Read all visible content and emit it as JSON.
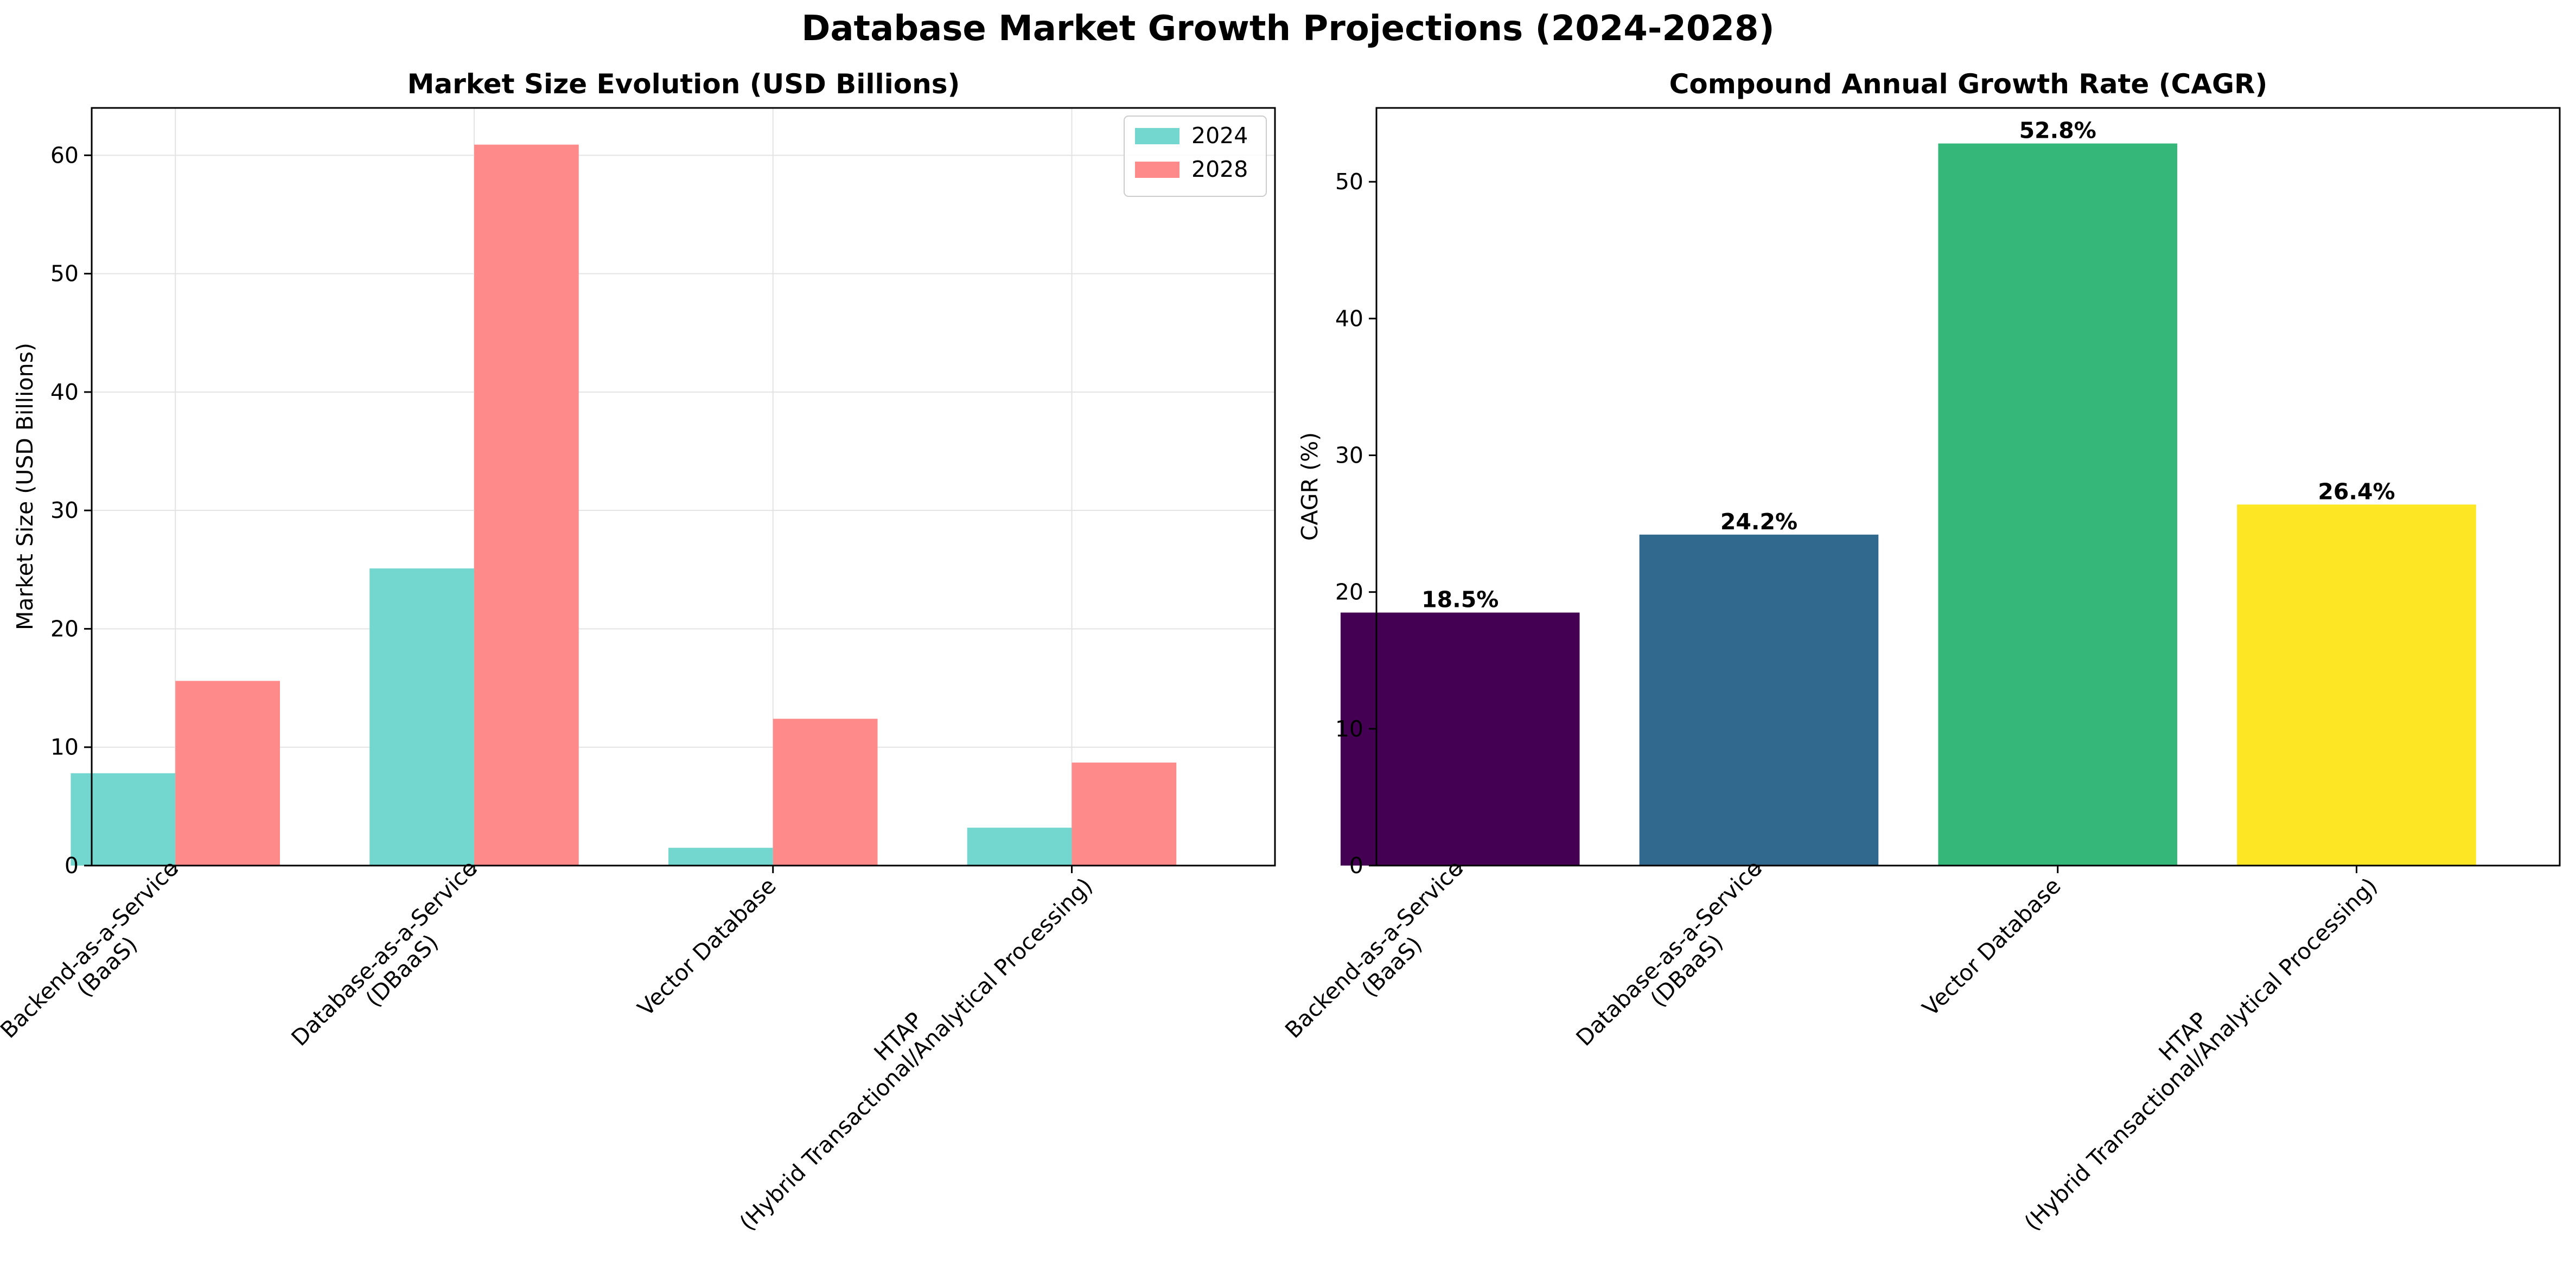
{
  "title": "Database Market Growth Projections (2024-2028)",
  "chart_data": [
    {
      "type": "bar",
      "title": "Market Size Evolution (USD Billions)",
      "xlabel": "",
      "ylabel": "Market Size (USD Billions)",
      "categories": [
        [
          "Backend-as-a-Service",
          "(BaaS)"
        ],
        [
          "Database-as-a-Service",
          "(DBaaS)"
        ],
        [
          "Vector Database"
        ],
        [
          "HTAP",
          "(Hybrid Transactional/Analytical Processing)"
        ]
      ],
      "series": [
        {
          "name": "2024",
          "color": "#73d7d0",
          "values": [
            7.8,
            25.1,
            1.5,
            3.2
          ]
        },
        {
          "name": "2028",
          "color": "#ff8a8a",
          "values": [
            15.6,
            60.9,
            12.4,
            8.7
          ]
        }
      ],
      "ylim": [
        0,
        64
      ],
      "yticks": [
        0,
        10,
        20,
        30,
        40,
        50,
        60
      ],
      "grid": true,
      "legend": "top-right"
    },
    {
      "type": "bar",
      "title": "Compound Annual Growth Rate (CAGR)",
      "xlabel": "",
      "ylabel": "CAGR (%)",
      "categories": [
        [
          "Backend-as-a-Service",
          "(BaaS)"
        ],
        [
          "Database-as-a-Service",
          "(DBaaS)"
        ],
        [
          "Vector Database"
        ],
        [
          "HTAP",
          "(Hybrid Transactional/Analytical Processing)"
        ]
      ],
      "values": [
        18.5,
        24.2,
        52.8,
        26.4
      ],
      "labels": [
        "18.5%",
        "24.2%",
        "52.8%",
        "26.4%"
      ],
      "colors": [
        "#440154",
        "#31688e",
        "#35b779",
        "#fde725"
      ],
      "ylim": [
        0,
        55.4
      ],
      "yticks": [
        0,
        10,
        20,
        30,
        40,
        50
      ],
      "grid": false
    }
  ]
}
